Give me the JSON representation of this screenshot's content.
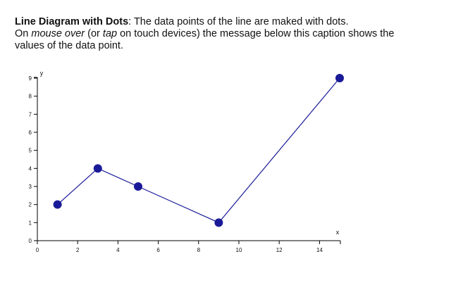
{
  "caption": {
    "title": "Line Diagram with Dots",
    "colon": ": ",
    "line1_rest": "The data points of the line are maked with dots.",
    "on": "On ",
    "mouse_over": "mouse over",
    "or_open": " (or ",
    "tap": "tap",
    "line2_rest": " on touch devices) the message below this caption shows the",
    "line3": "values of the data point."
  },
  "colors": {
    "line": "#1a1a99",
    "dot": "#1a1a99",
    "axis": "#000000"
  },
  "chart_data": {
    "type": "line",
    "xlabel": "x",
    "ylabel": "y",
    "xlim": [
      0,
      15
    ],
    "ylim": [
      0,
      9
    ],
    "xticks": [
      0,
      2,
      4,
      6,
      8,
      10,
      12,
      14
    ],
    "yticks": [
      0,
      1,
      2,
      3,
      4,
      5,
      6,
      7,
      8,
      9
    ],
    "grid": false,
    "markers": "dot",
    "series": [
      {
        "x": [
          1,
          3,
          5,
          9,
          15
        ],
        "y": [
          2,
          4,
          3,
          1,
          9
        ]
      }
    ]
  }
}
